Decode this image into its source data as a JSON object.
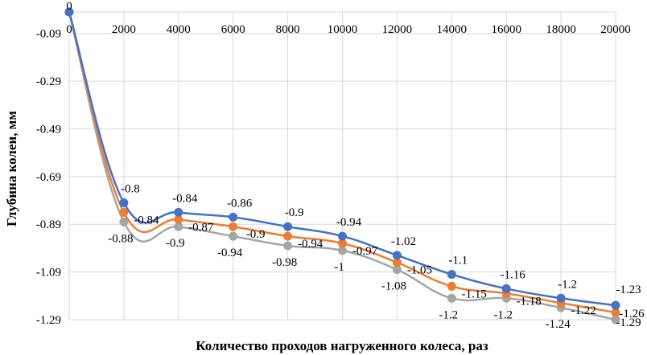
{
  "chart_data": {
    "type": "line",
    "title": "",
    "xlabel": "Количество проходов нагруженного колеса, раз",
    "ylabel": "Глубина колеи, мм",
    "x": [
      0,
      2000,
      4000,
      6000,
      8000,
      10000,
      12000,
      14000,
      16000,
      18000,
      20000
    ],
    "xlim": [
      0,
      20000
    ],
    "ylim": [
      -1.29,
      0
    ],
    "yticks": [
      -0.09,
      -0.29,
      -0.49,
      -0.69,
      -0.89,
      -1.09,
      -1.29
    ],
    "ytick_labels": [
      "-0.09",
      "-0.29",
      "-0.49",
      "-0.69",
      "-0.89",
      "-1.09",
      "-1.29"
    ],
    "xtick_labels": [
      "0",
      "2000",
      "4000",
      "6000",
      "8000",
      "10000",
      "12000",
      "14000",
      "16000",
      "18000",
      "20000"
    ],
    "grid": true,
    "legend": "none",
    "smoothed": true,
    "series": [
      {
        "name": "series-1",
        "color": "#4472C4",
        "label_pos": "above",
        "values": [
          0,
          -0.8,
          -0.84,
          -0.86,
          -0.9,
          -0.94,
          -1.02,
          -1.1,
          -1.16,
          -1.2,
          -1.23
        ],
        "labels": [
          "0",
          "-0.8",
          "-0.84",
          "-0.86",
          "-0.9",
          "-0.94",
          "-1.02",
          "-1.1",
          "-1.16",
          "-1.2",
          "-1.23"
        ]
      },
      {
        "name": "series-2",
        "color": "#ED7D31",
        "label_pos": "right",
        "values": [
          0,
          -0.84,
          -0.87,
          -0.9,
          -0.94,
          -0.97,
          -1.05,
          -1.15,
          -1.18,
          -1.22,
          -1.26
        ],
        "labels": [
          "",
          "-0.84",
          "-0.87",
          "-0.9",
          "-0.94",
          "-0.97",
          "-1.05",
          "-1.15",
          "-1.18",
          "-1.22",
          "-1.26"
        ]
      },
      {
        "name": "series-3",
        "color": "#A5A5A5",
        "label_pos": "below",
        "values": [
          0,
          -0.88,
          -0.9,
          -0.94,
          -0.98,
          -1,
          -1.08,
          -1.2,
          -1.2,
          -1.24,
          -1.29
        ],
        "labels": [
          "",
          "-0.88",
          "-0.9",
          "-0.94",
          "-0.98",
          "-1",
          "-1.08",
          "-1.2",
          "-1.2",
          "-1.24",
          "-1.29"
        ]
      }
    ]
  }
}
